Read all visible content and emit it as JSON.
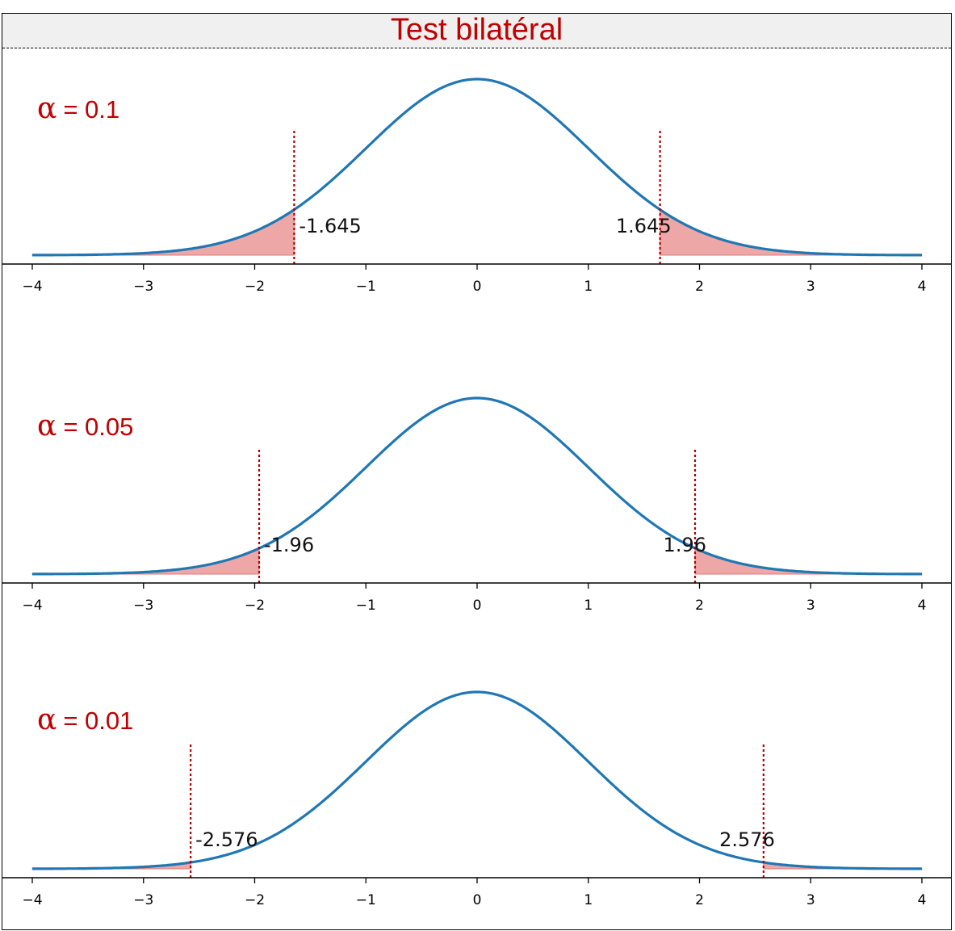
{
  "title": "Test bilatéral",
  "colors": {
    "title": "#c00000",
    "curve": "#1f77b4",
    "fill": "#eea7a7",
    "critical_line": "#b00000",
    "alpha_text": "#c00000"
  },
  "chart_data": [
    {
      "type": "area",
      "alpha_label": "= 0.1",
      "alpha_symbol": "α",
      "critical_values": [
        -1.645,
        1.645
      ],
      "critical_labels": [
        "-1.645",
        "1.645"
      ],
      "xlim": [
        -4,
        4
      ],
      "xticks": [
        -4,
        -3,
        -2,
        -1,
        0,
        1,
        2,
        3,
        4
      ],
      "xtick_labels": [
        "−4",
        "−3",
        "−2",
        "−1",
        "0",
        "1",
        "2",
        "3",
        "4"
      ],
      "curve": "standard normal pdf",
      "shaded_tails": true
    },
    {
      "type": "area",
      "alpha_label": "= 0.05",
      "alpha_symbol": "α",
      "critical_values": [
        -1.96,
        1.96
      ],
      "critical_labels": [
        "-1.96",
        "1.96"
      ],
      "xlim": [
        -4,
        4
      ],
      "xticks": [
        -4,
        -3,
        -2,
        -1,
        0,
        1,
        2,
        3,
        4
      ],
      "xtick_labels": [
        "−4",
        "−3",
        "−2",
        "−1",
        "0",
        "1",
        "2",
        "3",
        "4"
      ],
      "curve": "standard normal pdf",
      "shaded_tails": true
    },
    {
      "type": "area",
      "alpha_label": "= 0.01",
      "alpha_symbol": "α",
      "critical_values": [
        -2.576,
        2.576
      ],
      "critical_labels": [
        "-2.576",
        "2.576"
      ],
      "xlim": [
        -4,
        4
      ],
      "xticks": [
        -4,
        -3,
        -2,
        -1,
        0,
        1,
        2,
        3,
        4
      ],
      "xtick_labels": [
        "−4",
        "−3",
        "−2",
        "−1",
        "0",
        "1",
        "2",
        "3",
        "4"
      ],
      "curve": "standard normal pdf",
      "shaded_tails": true
    }
  ]
}
